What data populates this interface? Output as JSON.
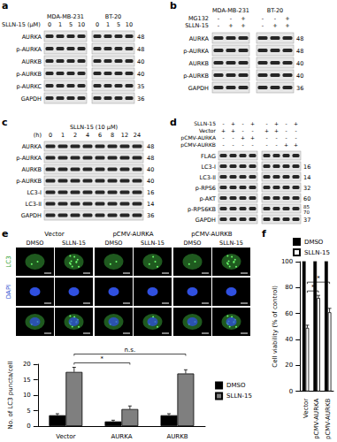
{
  "figure": {
    "a": {
      "letter": "a",
      "treatment": "SLLN-15 (μM)",
      "cell_lines": [
        "MDA-MB-231",
        "BT-20"
      ],
      "lanes": [
        "0",
        "1",
        "5",
        "10"
      ],
      "rows": [
        {
          "label": "AURKA",
          "kda": [
            "48"
          ]
        },
        {
          "label": "p-AURKA",
          "kda": [
            "48"
          ]
        },
        {
          "label": "AURKB",
          "kda": [
            "40"
          ]
        },
        {
          "label": "p-AURKB",
          "kda": [
            "40"
          ]
        },
        {
          "label": "p-AURKC",
          "kda": [
            "35"
          ]
        },
        {
          "label": "GAPDH",
          "kda": [
            "36"
          ]
        }
      ]
    },
    "b": {
      "letter": "b",
      "cell_lines": [
        "MDA-MB-231",
        "BT-20"
      ],
      "conditions": [
        {
          "label": "MG132",
          "lanes": [
            "-",
            "-",
            "+"
          ]
        },
        {
          "label": "SLLN-15",
          "lanes": [
            "-",
            "+",
            "+"
          ]
        }
      ],
      "rows": [
        {
          "label": "AURKA",
          "kda": [
            "48"
          ]
        },
        {
          "label": "p-AURKA",
          "kda": [
            "48"
          ]
        },
        {
          "label": "AURKB",
          "kda": [
            "40"
          ]
        },
        {
          "label": "p-AURKB",
          "kda": [
            "40"
          ]
        },
        {
          "label": "GAPDH",
          "kda": [
            "36"
          ]
        }
      ]
    },
    "c": {
      "letter": "c",
      "treatment": "SLLN-15 (10 μM)",
      "unit": "(h)",
      "lanes": [
        "0",
        "1",
        "2",
        "4",
        "6",
        "8",
        "12",
        "24"
      ],
      "rows": [
        {
          "label": "AURKA",
          "kda": [
            "48"
          ]
        },
        {
          "label": "p-AURKA",
          "kda": [
            "48"
          ]
        },
        {
          "label": "AURKB",
          "kda": [
            "40"
          ]
        },
        {
          "label": "p-AURKB",
          "kda": [
            "40"
          ]
        },
        {
          "label": "LC3-I",
          "kda": [
            "16"
          ]
        },
        {
          "label": "LC3-II",
          "kda": [
            "14"
          ]
        },
        {
          "label": "GAPDH",
          "kda": [
            "36"
          ]
        }
      ]
    },
    "d": {
      "letter": "d",
      "conditions": [
        {
          "label": "SLLN-15",
          "lanes": [
            "-",
            "+",
            "-",
            "+",
            "-",
            "+",
            "-",
            "+"
          ]
        },
        {
          "label": "Vector",
          "lanes": [
            "+",
            "+",
            "-",
            "-",
            "+",
            "+",
            "-",
            "-"
          ]
        },
        {
          "label": "pCMV-AURKA",
          "lanes": [
            "-",
            "-",
            "+",
            "+",
            "-",
            "-",
            "-",
            "-"
          ]
        },
        {
          "label": "pCMV-AURKB",
          "lanes": [
            "-",
            "-",
            "-",
            "-",
            "-",
            "-",
            "+",
            "+"
          ]
        }
      ],
      "rows": [
        {
          "label": "FLAG",
          "kda": []
        },
        {
          "label": "LC3-I",
          "kda": [
            "16"
          ]
        },
        {
          "label": "LC3-II",
          "kda": [
            "14"
          ]
        },
        {
          "label": "p-RPS6",
          "kda": [
            "32"
          ]
        },
        {
          "label": "p-AKT",
          "kda": [
            "60"
          ]
        },
        {
          "label": "p-RPS6KB",
          "kda": [
            "85",
            "70"
          ]
        },
        {
          "label": "GAPDH",
          "kda": [
            "37"
          ]
        }
      ]
    },
    "e": {
      "letter": "e",
      "groups": [
        "Vector",
        "pCMV-AURKA",
        "pCMV-AURKB"
      ],
      "columns": [
        "DMSO",
        "SLLN-15"
      ],
      "rows": [
        "LC3",
        "DAPI"
      ]
    },
    "f": {
      "letter": "f"
    }
  },
  "chart_data": [
    {
      "type": "bar",
      "categories": [
        "Vector",
        "AURKA",
        "AURKB"
      ],
      "y_label": "No. of LC3 puncta/cell",
      "ylim": [
        0,
        20
      ],
      "yticks": [
        0,
        5,
        10,
        15,
        20
      ],
      "grid": false,
      "legend": "right",
      "series": [
        {
          "name": "DMSO",
          "color": "#000000",
          "values": [
            3.5,
            1.5,
            3.5
          ],
          "errors": [
            0.5,
            0.4,
            0.5
          ]
        },
        {
          "name": "SLLN-15",
          "color": "#7f7f7f",
          "values": [
            17.5,
            5.5,
            17
          ],
          "errors": [
            1.5,
            1.0,
            1.2
          ]
        }
      ],
      "annotations": [
        {
          "text": "*",
          "from": "Vector",
          "to": "AURKA",
          "series": "SLLN-15"
        },
        {
          "text": "n.s.",
          "from": "Vector",
          "to": "AURKB",
          "series": "SLLN-15"
        }
      ]
    },
    {
      "type": "bar",
      "categories": [
        "Vector",
        "pCMV-AURKA",
        "pCMV-AURKB"
      ],
      "y_label": "Cell viability (% of control)",
      "ylim": [
        0,
        100
      ],
      "yticks": [
        0,
        20,
        40,
        60,
        80,
        100
      ],
      "grid": false,
      "legend": "top",
      "series": [
        {
          "name": "DMSO",
          "color": "#000000",
          "values": [
            100,
            100,
            100
          ],
          "errors": [
            0,
            0,
            0
          ]
        },
        {
          "name": "SLLN-15",
          "color": "#ffffff",
          "values": [
            49,
            72,
            61
          ],
          "errors": [
            2,
            2,
            3
          ]
        }
      ],
      "annotations": [
        {
          "text": "*",
          "from": "Vector",
          "to": "pCMV-AURKA",
          "series": "SLLN-15"
        },
        {
          "text": "*",
          "from": "Vector",
          "to": "pCMV-AURKB",
          "series": "SLLN-15"
        }
      ]
    }
  ]
}
